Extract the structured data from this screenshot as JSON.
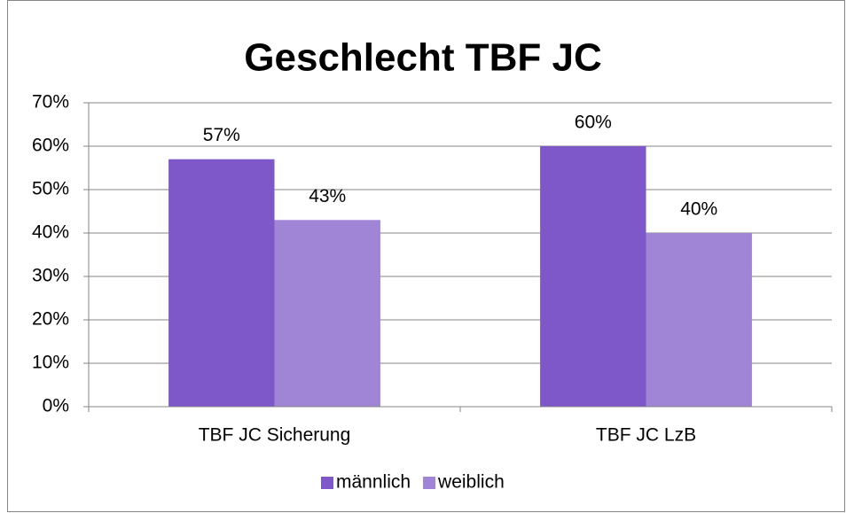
{
  "chart_data": {
    "type": "bar",
    "title": "Geschlecht TBF JC",
    "categories": [
      "TBF JC Sicherung",
      "TBF JC LzB"
    ],
    "series": [
      {
        "name": "männlich",
        "color": "#7e57c8",
        "values": [
          57,
          60
        ],
        "value_labels": [
          "57%",
          "60%"
        ]
      },
      {
        "name": "weiblich",
        "color": "#a084d6",
        "values": [
          43,
          40
        ],
        "value_labels": [
          "43%",
          "40%"
        ]
      }
    ],
    "ylim": [
      0,
      70
    ],
    "yticks": [
      {
        "value": 0,
        "label": "0%"
      },
      {
        "value": 10,
        "label": "10%"
      },
      {
        "value": 20,
        "label": "20%"
      },
      {
        "value": 30,
        "label": "30%"
      },
      {
        "value": 40,
        "label": "40%"
      },
      {
        "value": 50,
        "label": "50%"
      },
      {
        "value": 60,
        "label": "60%"
      },
      {
        "value": 70,
        "label": "70%"
      }
    ],
    "grid": true,
    "legend": "bottom"
  }
}
